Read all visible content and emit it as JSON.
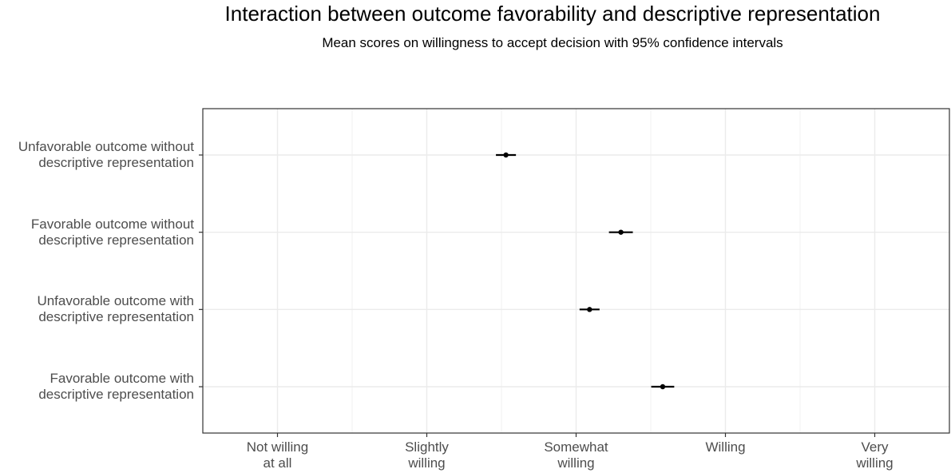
{
  "chart_data": {
    "type": "dot-errorbar",
    "title": "Interaction between outcome favorability and descriptive representation",
    "subtitle": "Mean scores on willingness to accept decision with 95% confidence intervals",
    "categories": [
      "Unfavorable outcome without\ndescriptive representation",
      "Favorable outcome without\ndescriptive representation",
      "Unfavorable outcome with\ndescriptive representation",
      "Favorable outcome with\ndescriptive representation"
    ],
    "values": [
      2.53,
      3.3,
      3.09,
      3.58
    ],
    "errors": [
      0.067,
      0.08,
      0.067,
      0.077
    ],
    "color": "#000000",
    "xlim": [
      0.5,
      5.5
    ],
    "xticks": [
      {
        "value": 1,
        "label": "Not willing\nat all"
      },
      {
        "value": 2,
        "label": "Slightly\nwilling"
      },
      {
        "value": 3,
        "label": "Somewhat\nwilling"
      },
      {
        "value": 4,
        "label": "Willing"
      },
      {
        "value": 5,
        "label": "Very\nwilling"
      }
    ],
    "grid": true
  }
}
